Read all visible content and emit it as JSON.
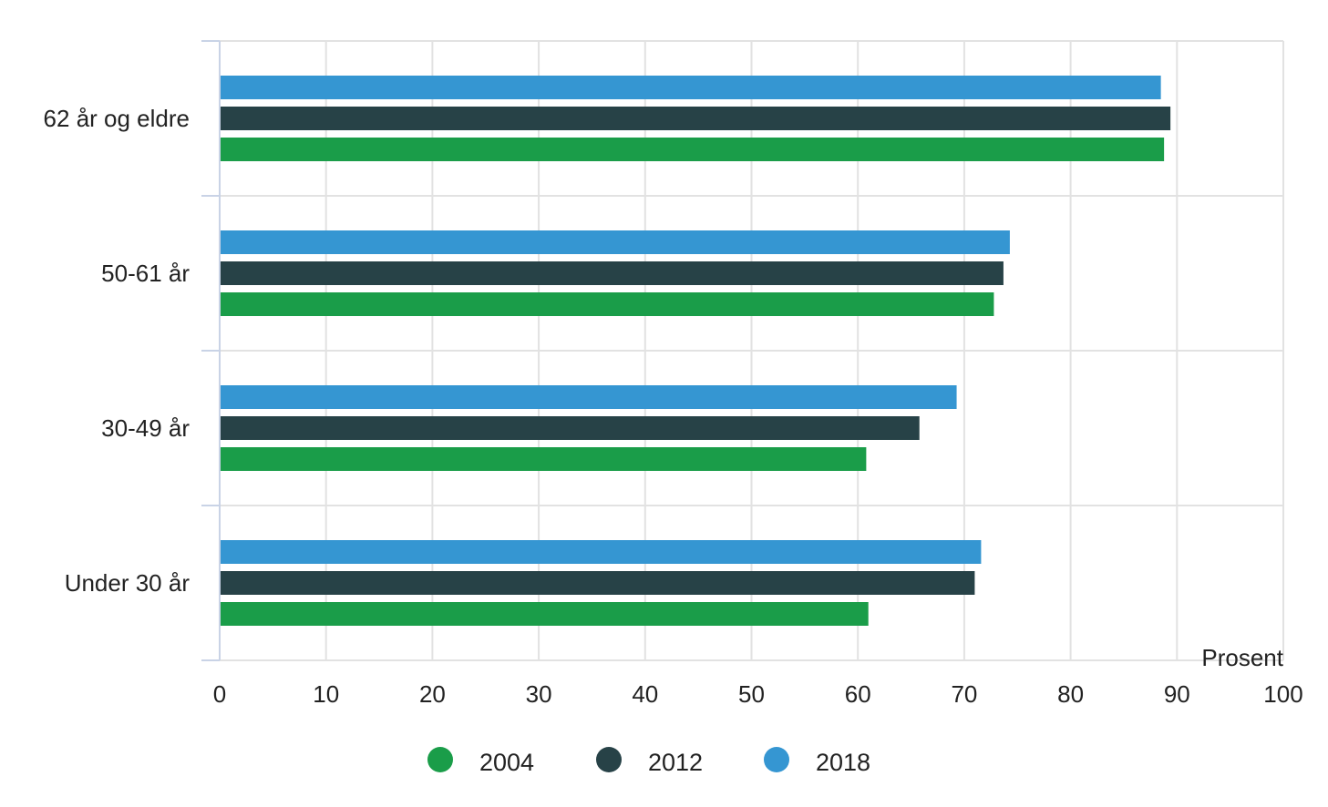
{
  "chart_data": {
    "type": "bar",
    "orientation": "horizontal",
    "categories": [
      "62 år og eldre",
      "50-61 år",
      "30-49 år",
      "Under 30 år"
    ],
    "series": [
      {
        "name": "2018",
        "color": "#3596d2",
        "values": [
          88.4,
          74.2,
          69.2,
          71.5
        ]
      },
      {
        "name": "2012",
        "color": "#274247",
        "values": [
          89.3,
          73.6,
          65.7,
          70.9
        ]
      },
      {
        "name": "2004",
        "color": "#1a9d49",
        "values": [
          88.7,
          72.7,
          60.7,
          60.9
        ]
      }
    ],
    "xlabel": "Prosent",
    "ylabel": "",
    "xlim": [
      0,
      100
    ],
    "xticks": [
      "0",
      "10",
      "20",
      "30",
      "40",
      "50",
      "60",
      "70",
      "80",
      "90",
      "100"
    ],
    "grid": true,
    "legend": {
      "placement": "bottom-center",
      "items": [
        {
          "label": "2004",
          "color": "#1a9d49"
        },
        {
          "label": "2012",
          "color": "#274247"
        },
        {
          "label": "2018",
          "color": "#3596d2"
        }
      ]
    }
  }
}
